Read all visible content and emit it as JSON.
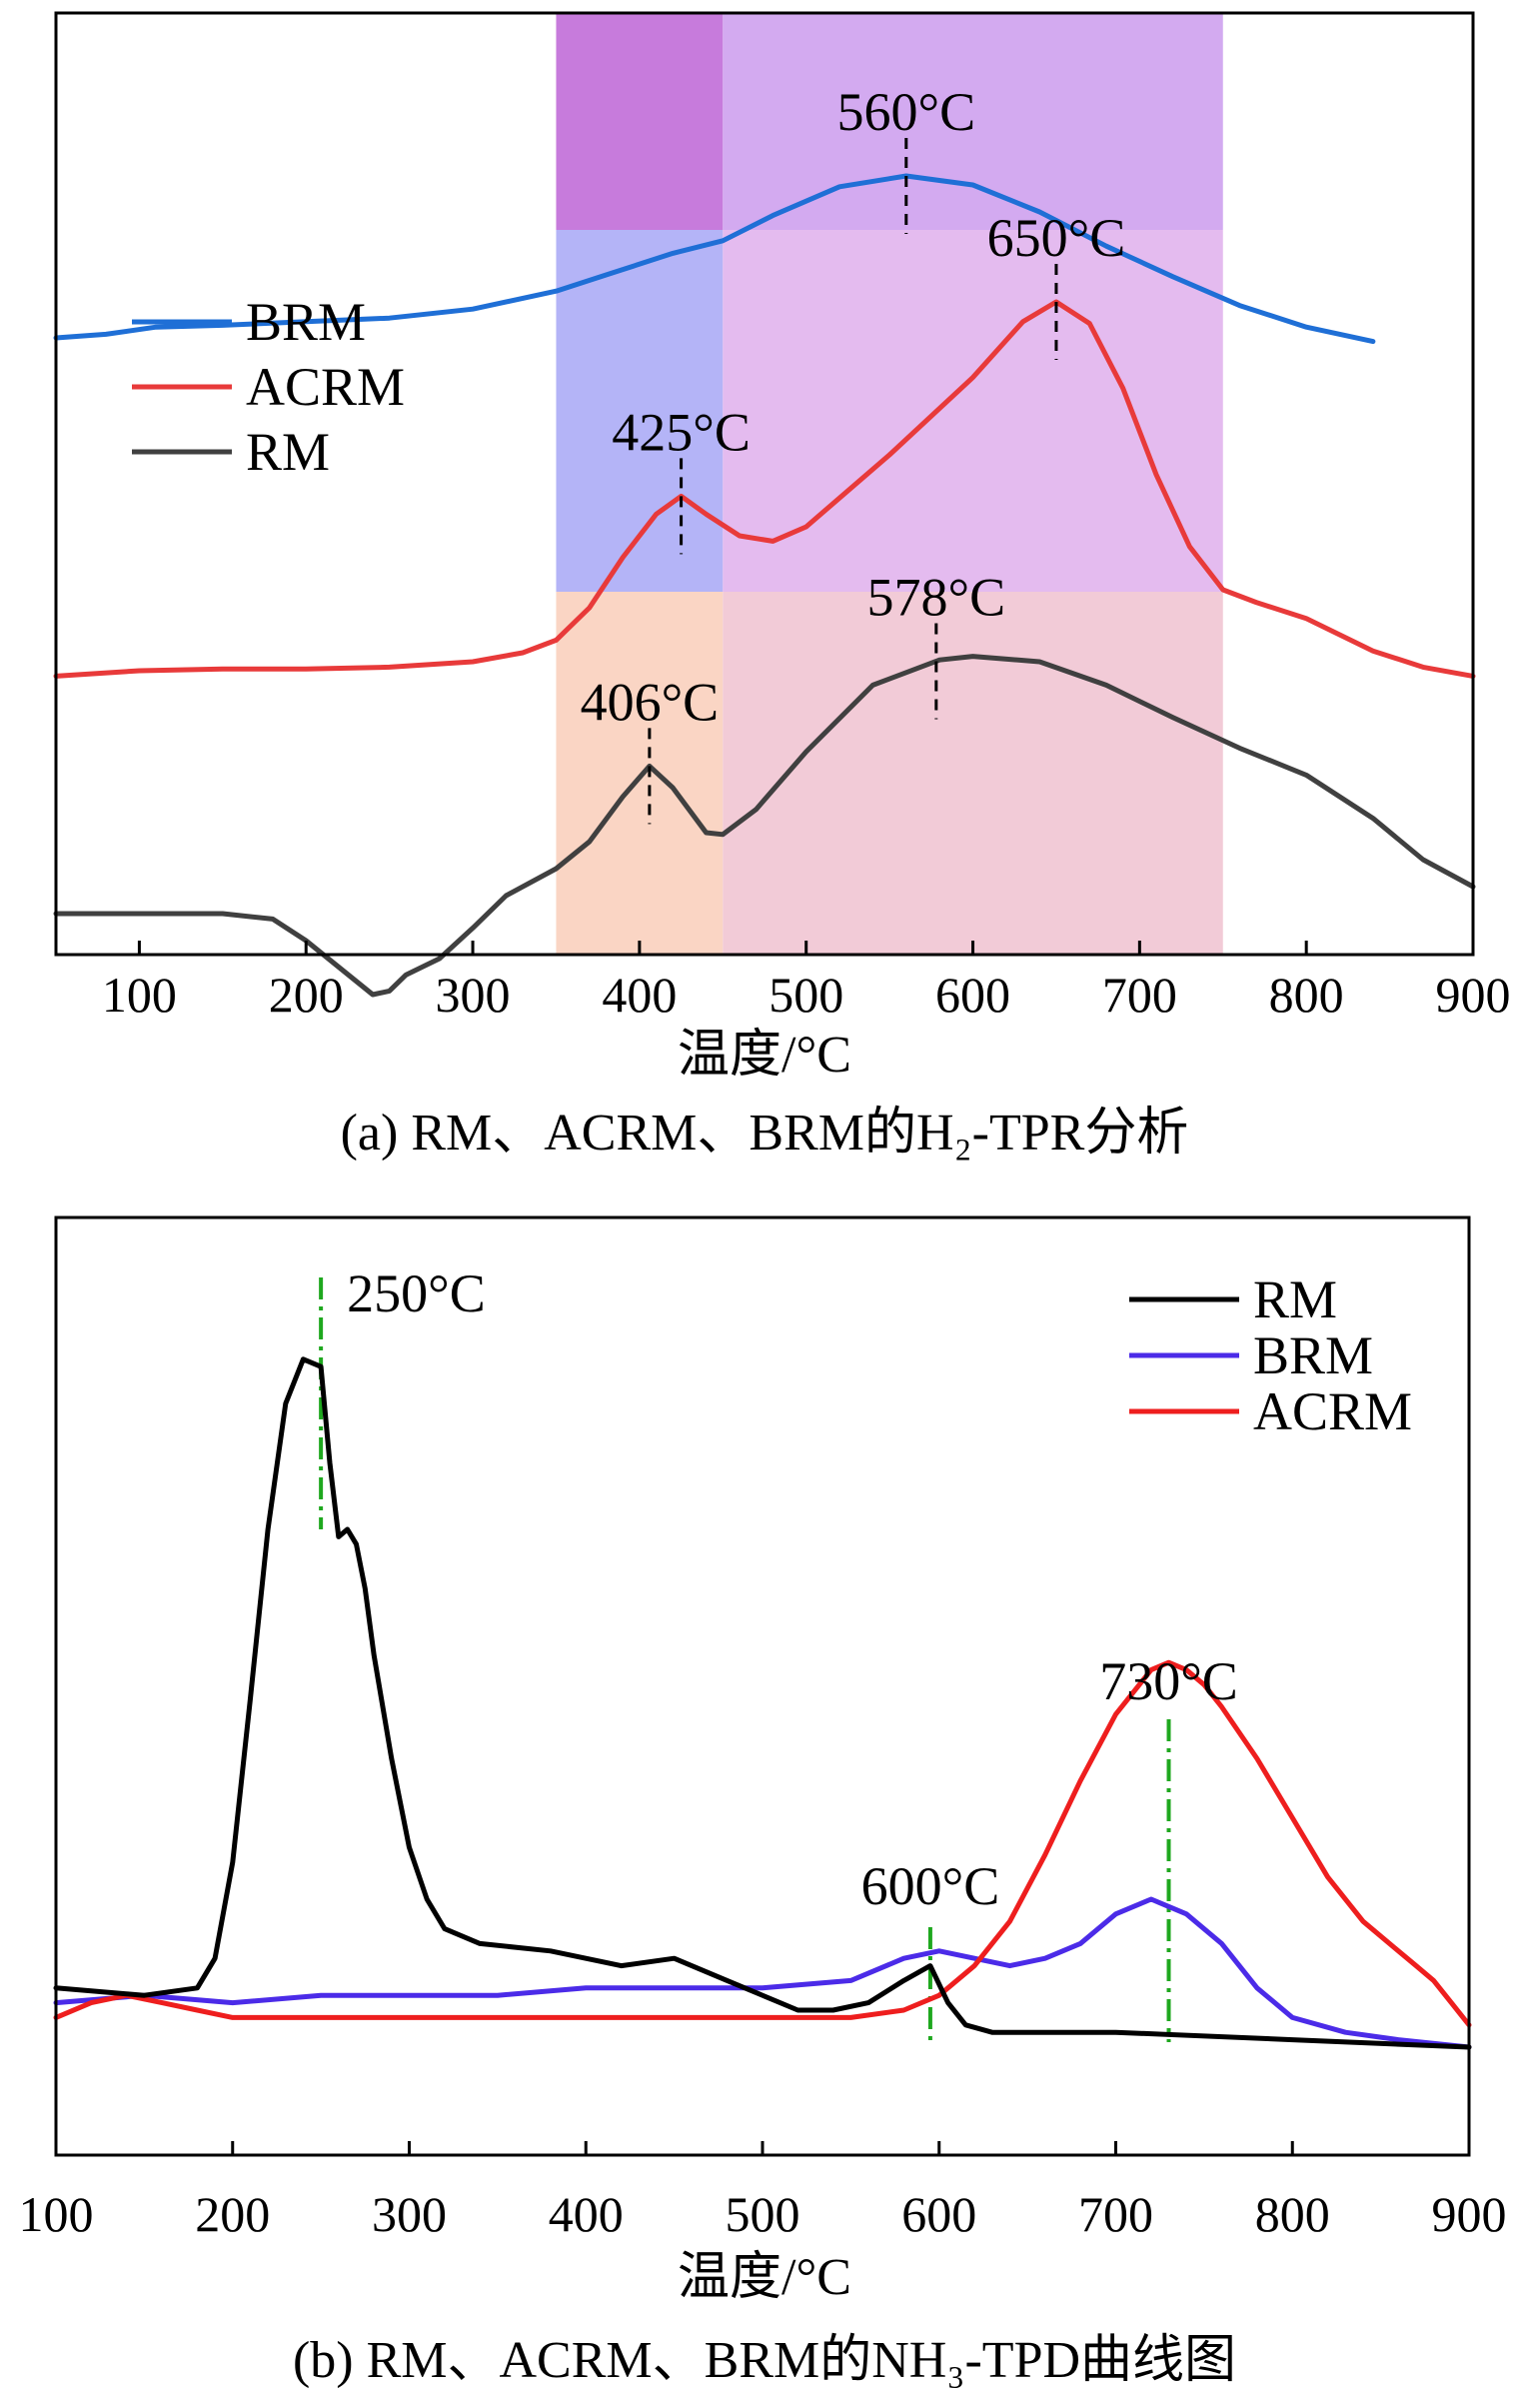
{
  "chart_data": [
    {
      "type": "line",
      "title": "",
      "caption": "(a) RM、ACRM、BRM的H₂-TPR分析",
      "xlabel": "温度/°C",
      "ylabel": "",
      "xlim": [
        50,
        900
      ],
      "xticks": [
        100,
        200,
        300,
        400,
        500,
        600,
        700,
        800,
        900
      ],
      "legend": {
        "position": "left",
        "entries": [
          "BRM",
          "ACRM",
          "RM"
        ]
      },
      "shaded_regions": [
        {
          "range": [
            350,
            450
          ],
          "band": "BRM",
          "color": "#c77bdc"
        },
        {
          "range": [
            450,
            750
          ],
          "band": "BRM",
          "color": "#d3aaf0"
        },
        {
          "range": [
            350,
            450
          ],
          "band": "ACRM",
          "color": "#b4b4f7"
        },
        {
          "range": [
            450,
            750
          ],
          "band": "ACRM",
          "color": "#e4bbef"
        },
        {
          "range": [
            350,
            450
          ],
          "band": "RM",
          "color": "#fad5c4"
        },
        {
          "range": [
            450,
            750
          ],
          "band": "RM",
          "color": "#f2cbd7"
        }
      ],
      "series": [
        {
          "name": "BRM",
          "color": "#1f6fd6",
          "x": [
            50,
            80,
            110,
            150,
            200,
            250,
            300,
            350,
            380,
            420,
            450,
            480,
            520,
            560,
            600,
            640,
            680,
            720,
            760,
            800,
            840
          ],
          "y": [
            3.9,
            3.92,
            3.96,
            3.97,
            3.99,
            4.01,
            4.06,
            4.16,
            4.25,
            4.37,
            4.44,
            4.58,
            4.74,
            4.8,
            4.75,
            4.6,
            4.41,
            4.24,
            4.08,
            3.96,
            3.88
          ]
        },
        {
          "name": "ACRM",
          "color": "#e83a3a",
          "x": [
            50,
            100,
            150,
            200,
            250,
            300,
            330,
            350,
            370,
            390,
            410,
            425,
            440,
            460,
            480,
            500,
            550,
            600,
            630,
            650,
            670,
            690,
            710,
            730,
            750,
            770,
            800,
            840,
            870,
            900
          ],
          "y": [
            2.02,
            2.05,
            2.06,
            2.06,
            2.07,
            2.1,
            2.15,
            2.22,
            2.4,
            2.68,
            2.92,
            3.02,
            2.92,
            2.8,
            2.77,
            2.85,
            3.25,
            3.68,
            3.99,
            4.1,
            3.98,
            3.62,
            3.14,
            2.74,
            2.5,
            2.43,
            2.34,
            2.16,
            2.07,
            2.02
          ]
        },
        {
          "name": "RM",
          "color": "#404040",
          "x": [
            50,
            100,
            150,
            180,
            200,
            220,
            240,
            250,
            260,
            280,
            300,
            320,
            350,
            370,
            390,
            406,
            420,
            440,
            450,
            470,
            500,
            540,
            580,
            600,
            640,
            680,
            720,
            760,
            800,
            840,
            870,
            900
          ],
          "y": [
            0.7,
            0.7,
            0.7,
            0.67,
            0.55,
            0.4,
            0.25,
            0.27,
            0.36,
            0.45,
            0.62,
            0.8,
            0.95,
            1.1,
            1.35,
            1.52,
            1.4,
            1.15,
            1.14,
            1.28,
            1.6,
            1.97,
            2.11,
            2.13,
            2.1,
            1.97,
            1.79,
            1.62,
            1.47,
            1.23,
            1.0,
            0.85
          ]
        }
      ],
      "annotations": [
        {
          "text": "560°C",
          "x": 560,
          "series": "BRM"
        },
        {
          "text": "650°C",
          "x": 650,
          "series": "ACRM"
        },
        {
          "text": "425°C",
          "x": 425,
          "series": "ACRM"
        },
        {
          "text": "578°C",
          "x": 578,
          "series": "RM"
        },
        {
          "text": "406°C",
          "x": 406,
          "series": "RM"
        }
      ]
    },
    {
      "type": "line",
      "title": "",
      "caption": "(b) RM、ACRM、BRM的NH₃-TPD曲线图",
      "xlabel": "温度/°C",
      "ylabel": "",
      "xlim": [
        100,
        900
      ],
      "ylim": [
        0,
        100
      ],
      "xticks": [
        100,
        200,
        300,
        400,
        500,
        600,
        700,
        800,
        900
      ],
      "legend": {
        "position": "top-right",
        "entries": [
          "RM",
          "BRM",
          "ACRM"
        ]
      },
      "series": [
        {
          "name": "RM",
          "color": "#000000",
          "x": [
            100,
            150,
            180,
            190,
            200,
            210,
            220,
            230,
            240,
            250,
            255,
            260,
            265,
            270,
            275,
            280,
            290,
            300,
            310,
            320,
            340,
            380,
            420,
            450,
            480,
            520,
            540,
            560,
            580,
            595,
            605,
            615,
            630,
            700,
            800,
            900
          ],
          "y": [
            13,
            12,
            13,
            17,
            30,
            52,
            75,
            92,
            98,
            97,
            84,
            74,
            75,
            73,
            67,
            58,
            44,
            32,
            25,
            21,
            19,
            18,
            16,
            17,
            14,
            10,
            10,
            11,
            14,
            16,
            11,
            8,
            7,
            7,
            6,
            5
          ]
        },
        {
          "name": "BRM",
          "color": "#4b2be8",
          "x": [
            100,
            150,
            200,
            250,
            300,
            350,
            400,
            450,
            500,
            550,
            580,
            600,
            620,
            640,
            660,
            680,
            700,
            720,
            740,
            760,
            780,
            800,
            830,
            860,
            900
          ],
          "y": [
            11,
            12,
            11,
            12,
            12,
            12,
            13,
            13,
            13,
            14,
            17,
            18,
            17,
            16,
            17,
            19,
            23,
            25,
            23,
            19,
            13,
            9,
            7,
            6,
            5
          ]
        },
        {
          "name": "ACRM",
          "color": "#ee1e1e",
          "x": [
            100,
            120,
            140,
            160,
            180,
            200,
            250,
            300,
            400,
            500,
            550,
            580,
            600,
            620,
            640,
            660,
            680,
            700,
            710,
            720,
            730,
            740,
            750,
            760,
            780,
            800,
            820,
            840,
            860,
            870,
            880,
            890,
            900
          ],
          "y": [
            9,
            11,
            12,
            11,
            10,
            9,
            9,
            9,
            9,
            9,
            9,
            10,
            12,
            16,
            22,
            31,
            41,
            50,
            53,
            56,
            57,
            56,
            54,
            51,
            44,
            36,
            28,
            22,
            18,
            16,
            14,
            11,
            8
          ]
        }
      ],
      "annotations": [
        {
          "text": "250°C",
          "x": 250,
          "series": "RM"
        },
        {
          "text": "600°C",
          "x": 595,
          "series": "BRM"
        },
        {
          "text": "730°C",
          "x": 730,
          "series": "ACRM"
        }
      ]
    }
  ]
}
